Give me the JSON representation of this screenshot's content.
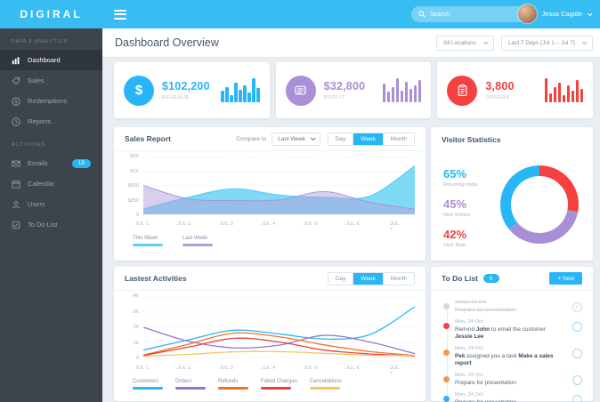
{
  "brand": {
    "logo": "DIGIRAL"
  },
  "topbar": {
    "search_placeholder": "Search",
    "user_name": "Jesus Cagide"
  },
  "sidebar": {
    "sections": [
      {
        "label": "DATA & ANALYTICS",
        "items": [
          {
            "label": "Dashboard",
            "icon": "bar-chart"
          },
          {
            "label": "Sales",
            "icon": "tag"
          },
          {
            "label": "Redemptions",
            "icon": "dollar-circle"
          },
          {
            "label": "Reports",
            "icon": "clock"
          }
        ]
      },
      {
        "label": "ACTIVITIES",
        "items": [
          {
            "label": "Emails",
            "icon": "envelope",
            "badge": "15"
          },
          {
            "label": "Calendar",
            "icon": "calendar"
          },
          {
            "label": "Users",
            "icon": "user"
          },
          {
            "label": "To Do List",
            "icon": "checklist"
          }
        ]
      }
    ]
  },
  "page": {
    "title": "Dashboard Overview",
    "location_filter": "All Locations",
    "date_filter": "Last 7 Days (Jul 1 – Jul 7)"
  },
  "kpis": [
    {
      "value": "$102,200",
      "label": "REVENUE",
      "color": "#29b6f6",
      "icon": "money",
      "spark": [
        8,
        11,
        5,
        14,
        9,
        12,
        7,
        17,
        10
      ]
    },
    {
      "value": "$32,800",
      "label": "PROFIT",
      "color": "#a98fd6",
      "icon": "wallet",
      "spark": [
        11,
        6,
        9,
        14,
        7,
        12,
        8,
        10,
        13
      ]
    },
    {
      "value": "3,800",
      "label": "ORDERS",
      "color": "#f4403e",
      "icon": "clipboard",
      "spark": [
        16,
        6,
        10,
        13,
        5,
        11,
        8,
        15,
        9
      ]
    }
  ],
  "sales_report": {
    "title": "Sales Report",
    "compare_label": "Compare to",
    "compare_value": "Last Week",
    "tabs": [
      "Day",
      "Week",
      "Month"
    ],
    "active_tab": "Week"
  },
  "visitor_stats": {
    "title": "Visitor Statistics",
    "stats": [
      {
        "value": "65%",
        "label": "Returning Visits",
        "color": "#29b6f6"
      },
      {
        "value": "45%",
        "label": "New Visitors",
        "color": "#a98fd6"
      },
      {
        "value": "42%",
        "label": "Click Rate",
        "color": "#f4403e"
      }
    ]
  },
  "activities_panel": {
    "title": "Lastest Activities",
    "tabs": [
      "Day",
      "Week",
      "Month"
    ],
    "active_tab": "Week"
  },
  "todo": {
    "title": "To Do List",
    "badge": "6",
    "new_button": "+ New",
    "items": [
      {
        "date": "Today, 21 Oct",
        "dot": "#d2d9e0",
        "done": true,
        "parts": [
          {
            "t": "Prepare for presentation"
          }
        ]
      },
      {
        "date": "Mon, 24 Oct",
        "dot": "#f4403e",
        "parts": [
          {
            "t": "Remind "
          },
          {
            "t": "John",
            "b": true
          },
          {
            "t": " to email the customer "
          },
          {
            "t": "Jessie Lee",
            "b": true
          }
        ]
      },
      {
        "date": "Mon, 24 Oct",
        "dot": "#f2994a",
        "parts": [
          {
            "t": "Pek",
            "b": true
          },
          {
            "t": " assigned you a task "
          },
          {
            "t": "Make a sales report",
            "b": true
          }
        ]
      },
      {
        "date": "Mon, 24 Oct",
        "dot": "#f2994a",
        "parts": [
          {
            "t": "Prepare for presentation"
          }
        ]
      },
      {
        "date": "Mon, 24 Oct",
        "dot": "#29b6f6",
        "parts": [
          {
            "t": "Prepare for presentation"
          }
        ]
      }
    ]
  },
  "chart_data": [
    {
      "type": "area",
      "title": "Sales Report",
      "x": [
        "JUL 1",
        "JUL 2",
        "JUL 3",
        "JUL 4",
        "JUL 5",
        "JUL 6",
        "JUL 7"
      ],
      "y_ticks": [
        "$2K",
        "$1K",
        "$500",
        "$250",
        "0"
      ],
      "y_tick_values": [
        2000,
        1000,
        500,
        250,
        0
      ],
      "grid": true,
      "legend_position": "bottom",
      "series": [
        {
          "name": "This Week",
          "color": "#3ec9f2",
          "fill": "#5fd1f3",
          "opacity": 0.8,
          "values": [
            80,
            290,
            440,
            330,
            290,
            310,
            1400
          ]
        },
        {
          "name": "Last Week",
          "color": "#a98fd6",
          "fill": "#b39ddb",
          "opacity": 0.5,
          "values": [
            500,
            260,
            230,
            240,
            390,
            200,
            75
          ]
        }
      ]
    },
    {
      "type": "line",
      "title": "Lastest Activities",
      "x": [
        "JUL 1",
        "JUL 2",
        "JUL 3",
        "JUL 4",
        "JUL 5",
        "JUL 6",
        "JUL 7"
      ],
      "y_ticks": [
        "4K",
        "3K",
        "2K",
        "1K",
        "0"
      ],
      "ylim": [
        0,
        4000
      ],
      "grid": true,
      "legend_position": "bottom",
      "series": [
        {
          "name": "Customers",
          "color": "#29b6f6",
          "values": [
            450,
            1150,
            1800,
            1550,
            1200,
            1500,
            3400
          ]
        },
        {
          "name": "Orders",
          "color": "#9575cd",
          "values": [
            2000,
            1050,
            600,
            780,
            1450,
            1000,
            200
          ]
        },
        {
          "name": "Refunds",
          "color": "#ee7424",
          "values": [
            100,
            850,
            1600,
            1350,
            800,
            350,
            80
          ]
        },
        {
          "name": "Failed Charges",
          "color": "#e5403c",
          "values": [
            80,
            650,
            1250,
            1000,
            450,
            180,
            40
          ]
        },
        {
          "name": "Cancellations",
          "color": "#f3c65f",
          "values": [
            30,
            150,
            330,
            340,
            220,
            90,
            80
          ]
        }
      ]
    },
    {
      "type": "donut",
      "title": "Visitor Statistics",
      "segments": [
        {
          "label": "Click Rate",
          "value": 28,
          "color": "#f4403e"
        },
        {
          "label": "New Visitors",
          "value": 36,
          "color": "#a98fd6"
        },
        {
          "label": "Returning Visits",
          "value": 36,
          "color": "#29b6f6"
        }
      ]
    }
  ]
}
